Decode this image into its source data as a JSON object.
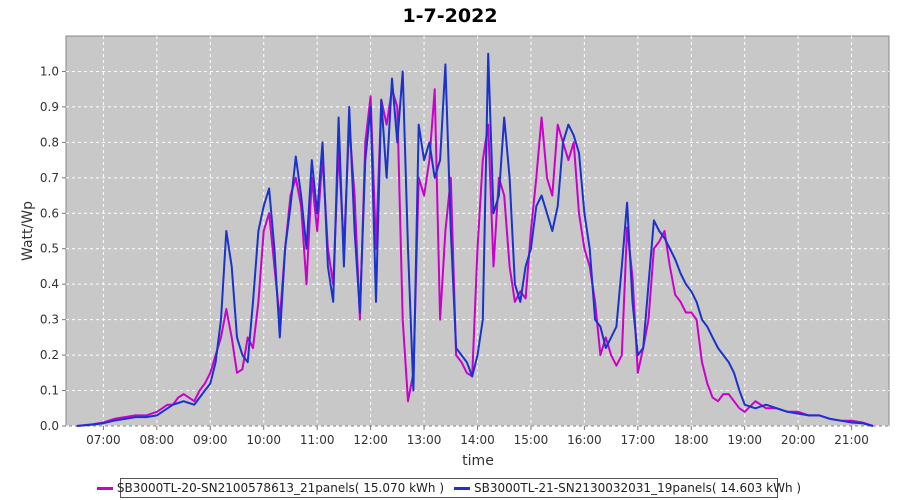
{
  "chart_data": {
    "type": "line",
    "title": "1-7-2022",
    "xlabel": "time",
    "ylabel": "Watt/Wp",
    "xlim": [
      6.3,
      21.7
    ],
    "ylim": [
      0,
      1.1
    ],
    "x_ticks": [
      {
        "value": 7,
        "label": "07:00"
      },
      {
        "value": 8,
        "label": "08:00"
      },
      {
        "value": 9,
        "label": "09:00"
      },
      {
        "value": 10,
        "label": "10:00"
      },
      {
        "value": 11,
        "label": "11:00"
      },
      {
        "value": 12,
        "label": "12:00"
      },
      {
        "value": 13,
        "label": "13:00"
      },
      {
        "value": 14,
        "label": "14:00"
      },
      {
        "value": 15,
        "label": "15:00"
      },
      {
        "value": 16,
        "label": "16:00"
      },
      {
        "value": 17,
        "label": "17:00"
      },
      {
        "value": 18,
        "label": "18:00"
      },
      {
        "value": 19,
        "label": "19:00"
      },
      {
        "value": 20,
        "label": "20:00"
      },
      {
        "value": 21,
        "label": "21:00"
      }
    ],
    "y_ticks": [
      "0.0",
      "0.1",
      "0.2",
      "0.3",
      "0.4",
      "0.5",
      "0.6",
      "0.7",
      "0.8",
      "0.9",
      "1.0"
    ],
    "grid": true,
    "legend_position": "bottom",
    "series": [
      {
        "name": "SB3000TL-20-SN2100578613_21panels( 15.070 kWh )",
        "color": "#cc00cc",
        "points": [
          [
            6.5,
            0.0
          ],
          [
            6.8,
            0.005
          ],
          [
            7.0,
            0.01
          ],
          [
            7.2,
            0.02
          ],
          [
            7.4,
            0.025
          ],
          [
            7.6,
            0.03
          ],
          [
            7.8,
            0.03
          ],
          [
            8.0,
            0.04
          ],
          [
            8.1,
            0.05
          ],
          [
            8.2,
            0.06
          ],
          [
            8.3,
            0.06
          ],
          [
            8.4,
            0.08
          ],
          [
            8.5,
            0.09
          ],
          [
            8.6,
            0.08
          ],
          [
            8.7,
            0.07
          ],
          [
            8.8,
            0.1
          ],
          [
            8.9,
            0.12
          ],
          [
            9.0,
            0.15
          ],
          [
            9.1,
            0.2
          ],
          [
            9.2,
            0.25
          ],
          [
            9.3,
            0.33
          ],
          [
            9.4,
            0.25
          ],
          [
            9.5,
            0.15
          ],
          [
            9.6,
            0.16
          ],
          [
            9.7,
            0.25
          ],
          [
            9.8,
            0.22
          ],
          [
            9.9,
            0.35
          ],
          [
            10.0,
            0.55
          ],
          [
            10.1,
            0.6
          ],
          [
            10.2,
            0.45
          ],
          [
            10.3,
            0.3
          ],
          [
            10.4,
            0.5
          ],
          [
            10.5,
            0.65
          ],
          [
            10.6,
            0.7
          ],
          [
            10.7,
            0.62
          ],
          [
            10.8,
            0.4
          ],
          [
            10.9,
            0.7
          ],
          [
            11.0,
            0.55
          ],
          [
            11.1,
            0.76
          ],
          [
            11.2,
            0.5
          ],
          [
            11.3,
            0.4
          ],
          [
            11.4,
            0.78
          ],
          [
            11.5,
            0.5
          ],
          [
            11.6,
            0.85
          ],
          [
            11.7,
            0.65
          ],
          [
            11.8,
            0.3
          ],
          [
            11.9,
            0.8
          ],
          [
            12.0,
            0.93
          ],
          [
            12.1,
            0.5
          ],
          [
            12.2,
            0.92
          ],
          [
            12.3,
            0.85
          ],
          [
            12.4,
            0.95
          ],
          [
            12.5,
            0.9
          ],
          [
            12.6,
            0.3
          ],
          [
            12.7,
            0.07
          ],
          [
            12.8,
            0.15
          ],
          [
            12.9,
            0.7
          ],
          [
            13.0,
            0.65
          ],
          [
            13.1,
            0.75
          ],
          [
            13.2,
            0.95
          ],
          [
            13.3,
            0.3
          ],
          [
            13.4,
            0.55
          ],
          [
            13.5,
            0.7
          ],
          [
            13.6,
            0.2
          ],
          [
            13.7,
            0.18
          ],
          [
            13.8,
            0.15
          ],
          [
            13.9,
            0.14
          ],
          [
            14.0,
            0.5
          ],
          [
            14.1,
            0.75
          ],
          [
            14.2,
            0.85
          ],
          [
            14.3,
            0.45
          ],
          [
            14.4,
            0.7
          ],
          [
            14.5,
            0.65
          ],
          [
            14.6,
            0.45
          ],
          [
            14.7,
            0.35
          ],
          [
            14.8,
            0.38
          ],
          [
            14.9,
            0.36
          ],
          [
            15.0,
            0.55
          ],
          [
            15.1,
            0.7
          ],
          [
            15.2,
            0.87
          ],
          [
            15.3,
            0.7
          ],
          [
            15.4,
            0.65
          ],
          [
            15.5,
            0.85
          ],
          [
            15.6,
            0.8
          ],
          [
            15.7,
            0.75
          ],
          [
            15.8,
            0.8
          ],
          [
            15.9,
            0.6
          ],
          [
            16.0,
            0.5
          ],
          [
            16.1,
            0.45
          ],
          [
            16.2,
            0.35
          ],
          [
            16.3,
            0.2
          ],
          [
            16.4,
            0.25
          ],
          [
            16.5,
            0.2
          ],
          [
            16.6,
            0.17
          ],
          [
            16.7,
            0.2
          ],
          [
            16.8,
            0.56
          ],
          [
            16.9,
            0.42
          ],
          [
            17.0,
            0.15
          ],
          [
            17.1,
            0.22
          ],
          [
            17.2,
            0.3
          ],
          [
            17.3,
            0.5
          ],
          [
            17.4,
            0.52
          ],
          [
            17.5,
            0.55
          ],
          [
            17.6,
            0.45
          ],
          [
            17.7,
            0.37
          ],
          [
            17.8,
            0.35
          ],
          [
            17.9,
            0.32
          ],
          [
            18.0,
            0.32
          ],
          [
            18.1,
            0.3
          ],
          [
            18.2,
            0.18
          ],
          [
            18.3,
            0.12
          ],
          [
            18.4,
            0.08
          ],
          [
            18.5,
            0.07
          ],
          [
            18.6,
            0.09
          ],
          [
            18.7,
            0.09
          ],
          [
            18.8,
            0.07
          ],
          [
            18.9,
            0.05
          ],
          [
            19.0,
            0.04
          ],
          [
            19.2,
            0.07
          ],
          [
            19.4,
            0.05
          ],
          [
            19.6,
            0.05
          ],
          [
            19.8,
            0.04
          ],
          [
            20.0,
            0.04
          ],
          [
            20.2,
            0.03
          ],
          [
            20.4,
            0.03
          ],
          [
            20.6,
            0.02
          ],
          [
            20.8,
            0.015
          ],
          [
            21.0,
            0.015
          ],
          [
            21.2,
            0.01
          ],
          [
            21.4,
            0.0
          ]
        ]
      },
      {
        "name": "SB3000TL-21-SN2130032031_19panels( 14.603 kWh )",
        "color": "#1a33cc",
        "points": [
          [
            6.5,
            0.0
          ],
          [
            6.8,
            0.004
          ],
          [
            7.0,
            0.008
          ],
          [
            7.2,
            0.015
          ],
          [
            7.4,
            0.02
          ],
          [
            7.6,
            0.025
          ],
          [
            7.8,
            0.025
          ],
          [
            8.0,
            0.03
          ],
          [
            8.1,
            0.04
          ],
          [
            8.2,
            0.05
          ],
          [
            8.3,
            0.06
          ],
          [
            8.4,
            0.065
          ],
          [
            8.5,
            0.07
          ],
          [
            8.6,
            0.065
          ],
          [
            8.7,
            0.06
          ],
          [
            8.8,
            0.08
          ],
          [
            8.9,
            0.1
          ],
          [
            9.0,
            0.12
          ],
          [
            9.1,
            0.18
          ],
          [
            9.2,
            0.3
          ],
          [
            9.3,
            0.55
          ],
          [
            9.4,
            0.45
          ],
          [
            9.5,
            0.25
          ],
          [
            9.6,
            0.2
          ],
          [
            9.7,
            0.18
          ],
          [
            9.8,
            0.35
          ],
          [
            9.9,
            0.55
          ],
          [
            10.0,
            0.62
          ],
          [
            10.1,
            0.67
          ],
          [
            10.2,
            0.5
          ],
          [
            10.3,
            0.25
          ],
          [
            10.4,
            0.5
          ],
          [
            10.5,
            0.62
          ],
          [
            10.6,
            0.76
          ],
          [
            10.7,
            0.65
          ],
          [
            10.8,
            0.5
          ],
          [
            10.9,
            0.75
          ],
          [
            11.0,
            0.6
          ],
          [
            11.1,
            0.8
          ],
          [
            11.2,
            0.45
          ],
          [
            11.3,
            0.35
          ],
          [
            11.4,
            0.87
          ],
          [
            11.5,
            0.45
          ],
          [
            11.6,
            0.9
          ],
          [
            11.7,
            0.55
          ],
          [
            11.8,
            0.32
          ],
          [
            11.9,
            0.75
          ],
          [
            12.0,
            0.9
          ],
          [
            12.1,
            0.35
          ],
          [
            12.2,
            0.92
          ],
          [
            12.3,
            0.7
          ],
          [
            12.4,
            0.98
          ],
          [
            12.5,
            0.8
          ],
          [
            12.6,
            1.0
          ],
          [
            12.7,
            0.5
          ],
          [
            12.8,
            0.1
          ],
          [
            12.9,
            0.85
          ],
          [
            13.0,
            0.75
          ],
          [
            13.1,
            0.8
          ],
          [
            13.2,
            0.7
          ],
          [
            13.3,
            0.75
          ],
          [
            13.4,
            1.02
          ],
          [
            13.5,
            0.55
          ],
          [
            13.6,
            0.22
          ],
          [
            13.7,
            0.2
          ],
          [
            13.8,
            0.18
          ],
          [
            13.9,
            0.14
          ],
          [
            14.0,
            0.2
          ],
          [
            14.1,
            0.3
          ],
          [
            14.2,
            1.05
          ],
          [
            14.3,
            0.6
          ],
          [
            14.4,
            0.65
          ],
          [
            14.5,
            0.87
          ],
          [
            14.6,
            0.7
          ],
          [
            14.7,
            0.4
          ],
          [
            14.8,
            0.35
          ],
          [
            14.9,
            0.45
          ],
          [
            15.0,
            0.5
          ],
          [
            15.1,
            0.62
          ],
          [
            15.2,
            0.65
          ],
          [
            15.3,
            0.6
          ],
          [
            15.4,
            0.55
          ],
          [
            15.5,
            0.62
          ],
          [
            15.6,
            0.8
          ],
          [
            15.7,
            0.85
          ],
          [
            15.8,
            0.82
          ],
          [
            15.9,
            0.77
          ],
          [
            16.0,
            0.6
          ],
          [
            16.1,
            0.5
          ],
          [
            16.2,
            0.3
          ],
          [
            16.3,
            0.28
          ],
          [
            16.4,
            0.22
          ],
          [
            16.5,
            0.25
          ],
          [
            16.6,
            0.28
          ],
          [
            16.7,
            0.45
          ],
          [
            16.8,
            0.63
          ],
          [
            16.9,
            0.35
          ],
          [
            17.0,
            0.2
          ],
          [
            17.1,
            0.22
          ],
          [
            17.2,
            0.4
          ],
          [
            17.3,
            0.58
          ],
          [
            17.4,
            0.55
          ],
          [
            17.5,
            0.53
          ],
          [
            17.6,
            0.5
          ],
          [
            17.7,
            0.47
          ],
          [
            17.8,
            0.43
          ],
          [
            17.9,
            0.4
          ],
          [
            18.0,
            0.38
          ],
          [
            18.1,
            0.35
          ],
          [
            18.2,
            0.3
          ],
          [
            18.3,
            0.28
          ],
          [
            18.4,
            0.25
          ],
          [
            18.5,
            0.22
          ],
          [
            18.6,
            0.2
          ],
          [
            18.7,
            0.18
          ],
          [
            18.8,
            0.15
          ],
          [
            18.9,
            0.1
          ],
          [
            19.0,
            0.06
          ],
          [
            19.2,
            0.05
          ],
          [
            19.4,
            0.06
          ],
          [
            19.6,
            0.05
          ],
          [
            19.8,
            0.04
          ],
          [
            20.0,
            0.035
          ],
          [
            20.2,
            0.03
          ],
          [
            20.4,
            0.03
          ],
          [
            20.6,
            0.02
          ],
          [
            20.8,
            0.015
          ],
          [
            21.0,
            0.01
          ],
          [
            21.2,
            0.008
          ],
          [
            21.4,
            0.0
          ]
        ]
      }
    ]
  }
}
